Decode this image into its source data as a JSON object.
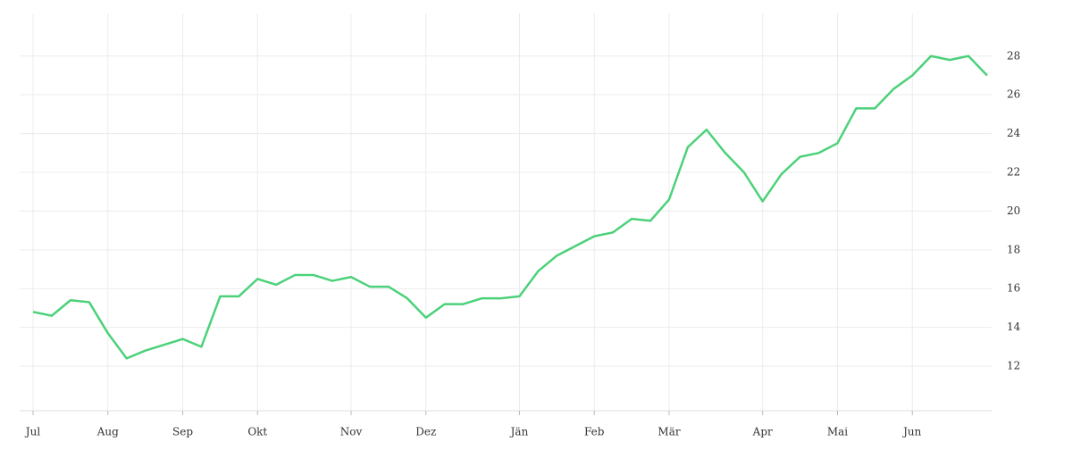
{
  "chart_data": {
    "type": "line",
    "categories": [
      "Jul",
      null,
      null,
      null,
      "Aug",
      null,
      null,
      null,
      "Sep",
      null,
      null,
      null,
      "Okt",
      null,
      null,
      null,
      null,
      "Nov",
      null,
      null,
      null,
      "Dez",
      null,
      null,
      null,
      null,
      "Jän",
      null,
      null,
      null,
      "Feb",
      null,
      null,
      null,
      "Mär",
      null,
      null,
      null,
      null,
      "Apr",
      null,
      null,
      null,
      "Mai",
      null,
      null,
      null,
      "Jun",
      null,
      null,
      null,
      null
    ],
    "series": [
      {
        "color": "#4cd17a",
        "values": [
          14.8,
          14.6,
          15.4,
          15.3,
          13.7,
          12.4,
          12.8,
          13.1,
          13.4,
          13.0,
          15.6,
          15.6,
          16.5,
          16.2,
          16.7,
          16.7,
          16.4,
          16.6,
          16.1,
          16.1,
          15.5,
          14.5,
          15.2,
          15.2,
          15.5,
          15.5,
          15.6,
          16.9,
          17.7,
          18.2,
          18.7,
          18.9,
          19.6,
          19.5,
          20.6,
          23.3,
          24.2,
          23.0,
          22.0,
          20.5,
          21.9,
          22.8,
          23.0,
          23.5,
          25.3,
          25.3,
          26.3,
          27.0,
          28.0,
          27.8,
          28.0,
          27.0
        ]
      }
    ],
    "ylim": [
      9.7,
      30.2
    ],
    "yticks": [
      12,
      14,
      16,
      18,
      20,
      22,
      24,
      26,
      28
    ],
    "grid": true
  }
}
